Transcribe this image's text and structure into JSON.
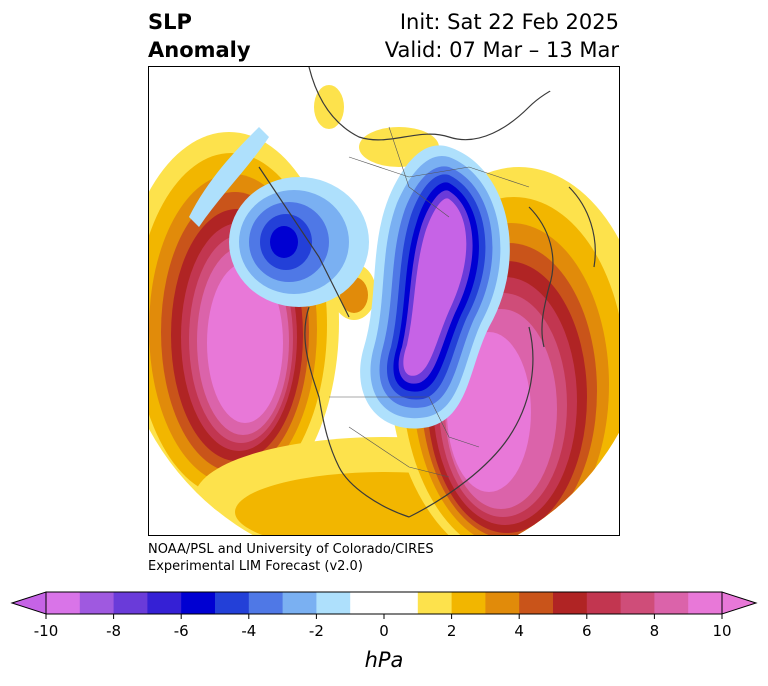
{
  "title": {
    "left_line1": "SLP",
    "left_line2": "Anomaly",
    "right_line1": "Init: Sat 22 Feb 2025",
    "right_line2": "Valid: 07 Mar – 13 Mar"
  },
  "credit": {
    "line1": "NOAA/PSL and University of Colorado/CIRES",
    "line2": "Experimental LIM Forecast (v2.0)"
  },
  "colorbar": {
    "unit": "hPa",
    "ticks": [
      "-10",
      "-8",
      "-6",
      "-4",
      "-2",
      "0",
      "2",
      "4",
      "6",
      "8",
      "10"
    ],
    "colors": [
      "#d974e8",
      "#9f59e0",
      "#6a3bd9",
      "#3520d5",
      "#0000d2",
      "#2340d8",
      "#4f78e6",
      "#7ab0f2",
      "#aee0fc",
      "#ffffff",
      "#ffffff",
      "#fde24c",
      "#f2b600",
      "#e18b0a",
      "#c9541a",
      "#b02424",
      "#c23650",
      "#cf4d79",
      "#db63aa",
      "#e878d8"
    ],
    "under_color": "#c663e6",
    "over_color": "#e878d8"
  },
  "map": {
    "projection": "north-polar-stereographic",
    "variable": "sea level pressure anomaly"
  }
}
